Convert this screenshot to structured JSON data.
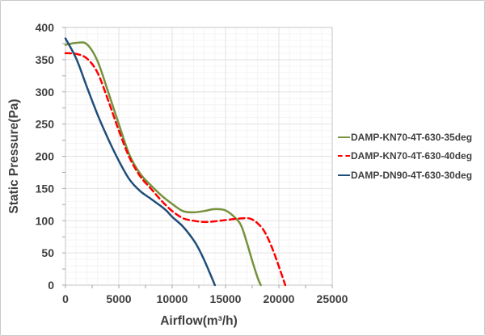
{
  "chart_data": {
    "type": "line",
    "title": "",
    "xlabel": "Airflow(m³/h)",
    "ylabel": "Static Pressure(Pa)",
    "xlim": [
      0,
      25000
    ],
    "ylim": [
      0,
      400
    ],
    "xticks": [
      0,
      5000,
      10000,
      15000,
      20000,
      25000
    ],
    "yticks": [
      0,
      50,
      100,
      150,
      200,
      250,
      300,
      350,
      400
    ],
    "minor_x_step": 1000,
    "minor_y_step": 10,
    "grid": "major+minor",
    "legend_position": "right-middle",
    "axis_text_color": "#404040",
    "major_grid_color": "#e2e2e2",
    "minor_grid_color": "#f4f4f4",
    "plot_border_color": "#c6c6c6",
    "tick_mark_color": "#a6a6a6",
    "series": [
      {
        "name": "DAMP-KN70-4T-630-35deg",
        "color": "#76923C",
        "line_style": "solid",
        "points": [
          [
            0,
            373
          ],
          [
            1000,
            376
          ],
          [
            2000,
            374
          ],
          [
            3000,
            348
          ],
          [
            4000,
            300
          ],
          [
            5000,
            250
          ],
          [
            6000,
            202
          ],
          [
            7000,
            173
          ],
          [
            8000,
            155
          ],
          [
            9000,
            139
          ],
          [
            10000,
            126
          ],
          [
            11000,
            115
          ],
          [
            12000,
            113
          ],
          [
            13000,
            115
          ],
          [
            14000,
            118
          ],
          [
            15000,
            116
          ],
          [
            16000,
            103
          ],
          [
            16500,
            91
          ],
          [
            17000,
            66
          ],
          [
            17500,
            38
          ],
          [
            18000,
            12
          ],
          [
            18300,
            0
          ]
        ]
      },
      {
        "name": "DAMP-KN70-4T-630-40deg",
        "color": "#FF0000",
        "line_style": "dashed",
        "points": [
          [
            0,
            360
          ],
          [
            1000,
            359
          ],
          [
            2000,
            352
          ],
          [
            3000,
            330
          ],
          [
            4000,
            287
          ],
          [
            5000,
            240
          ],
          [
            6000,
            198
          ],
          [
            7000,
            169
          ],
          [
            8000,
            150
          ],
          [
            9000,
            131
          ],
          [
            10000,
            115
          ],
          [
            11000,
            104
          ],
          [
            12000,
            100
          ],
          [
            13000,
            98
          ],
          [
            14000,
            99
          ],
          [
            15000,
            101
          ],
          [
            16000,
            103
          ],
          [
            17000,
            104
          ],
          [
            17500,
            102
          ],
          [
            18000,
            96
          ],
          [
            18500,
            87
          ],
          [
            19000,
            72
          ],
          [
            19500,
            52
          ],
          [
            20000,
            29
          ],
          [
            20600,
            0
          ]
        ]
      },
      {
        "name": "DAMP-DN90-4T-630-30deg",
        "color": "#1F4E79",
        "line_style": "solid",
        "points": [
          [
            0,
            383
          ],
          [
            1000,
            352
          ],
          [
            2000,
            308
          ],
          [
            3000,
            265
          ],
          [
            4000,
            227
          ],
          [
            5000,
            193
          ],
          [
            6000,
            164
          ],
          [
            7000,
            146
          ],
          [
            8000,
            134
          ],
          [
            9000,
            122
          ],
          [
            9500,
            115
          ],
          [
            10000,
            106
          ],
          [
            11000,
            91
          ],
          [
            12000,
            70
          ],
          [
            12500,
            56
          ],
          [
            13000,
            39
          ],
          [
            13500,
            20
          ],
          [
            14000,
            0
          ]
        ]
      }
    ]
  }
}
